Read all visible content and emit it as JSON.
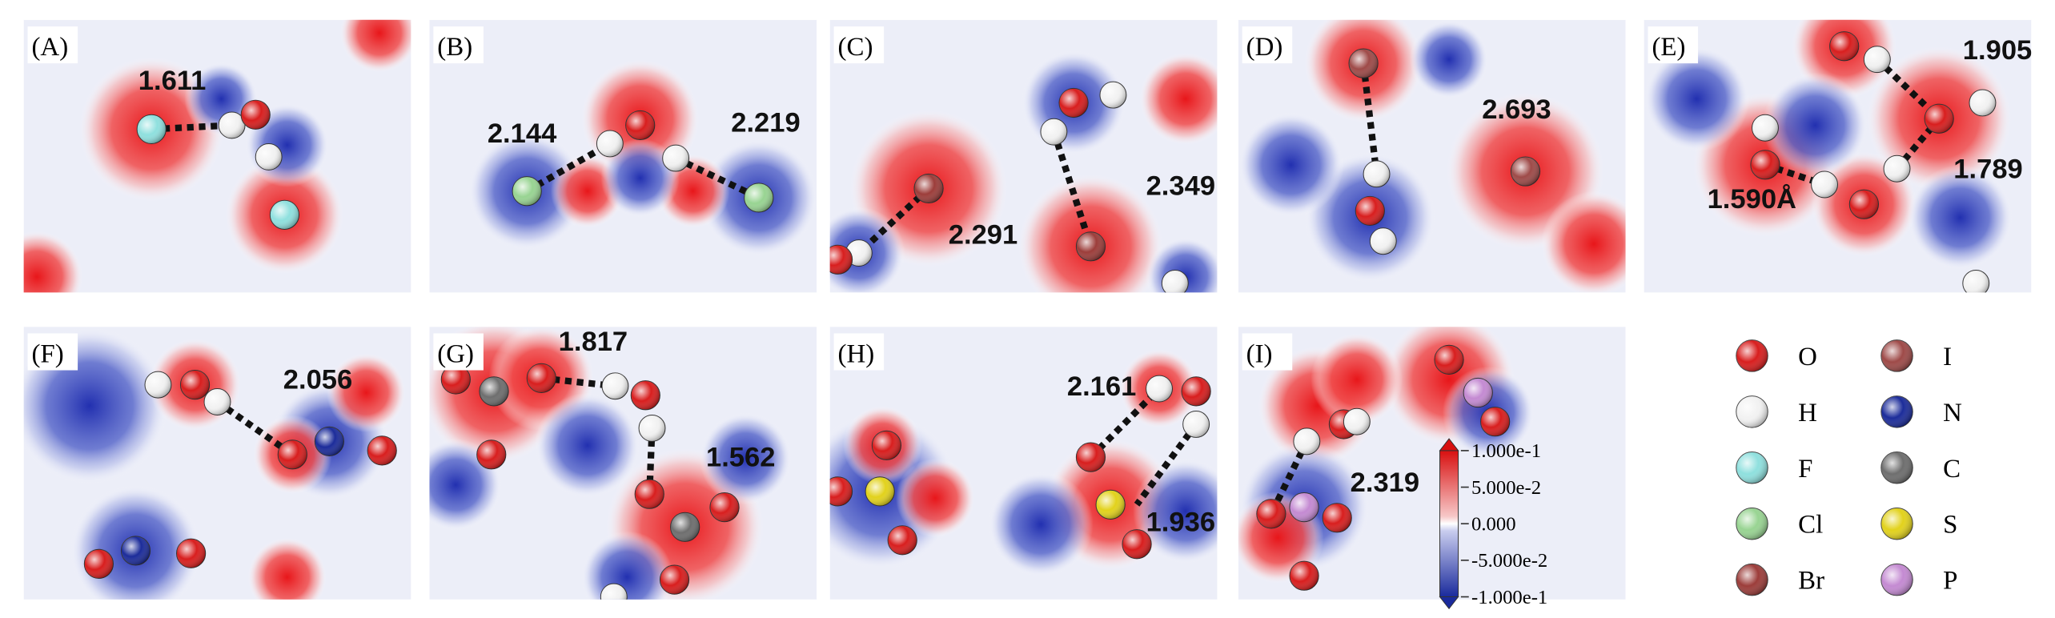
{
  "panels": [
    {
      "label": "(A)",
      "bonds": [
        "1.611"
      ]
    },
    {
      "label": "(B)",
      "bonds": [
        "2.144",
        "2.219"
      ]
    },
    {
      "label": "(C)",
      "bonds": [
        "2.291",
        "2.349"
      ]
    },
    {
      "label": "(D)",
      "bonds": [
        "2.693"
      ]
    },
    {
      "label": "(E)",
      "bonds": [
        "1.905",
        "1.789",
        "1.590Å"
      ]
    },
    {
      "label": "(F)",
      "bonds": [
        "2.056"
      ]
    },
    {
      "label": "(G)",
      "bonds": [
        "1.817",
        "1.562"
      ]
    },
    {
      "label": "(H)",
      "bonds": [
        "2.161",
        "1.936"
      ]
    },
    {
      "label": "(I)",
      "bonds": [
        "2.319"
      ]
    }
  ],
  "colorbar": {
    "ticks": [
      "1.000e-1",
      "5.000e-2",
      "0.000",
      "-5.000e-2",
      "-1.000e-1"
    ]
  },
  "legend": {
    "items": [
      {
        "name": "O",
        "color": "#d81e1e"
      },
      {
        "name": "H",
        "color": "#f2f2f2"
      },
      {
        "name": "F",
        "color": "#8fe0de"
      },
      {
        "name": "Cl",
        "color": "#98d492"
      },
      {
        "name": "Br",
        "color": "#9c3d3a"
      },
      {
        "name": "I",
        "color": "#9e4a48"
      },
      {
        "name": "N",
        "color": "#1c2c9a"
      },
      {
        "name": "C",
        "color": "#6e6e6e"
      },
      {
        "name": "S",
        "color": "#e2d21c"
      },
      {
        "name": "P",
        "color": "#c48ad2"
      }
    ]
  }
}
